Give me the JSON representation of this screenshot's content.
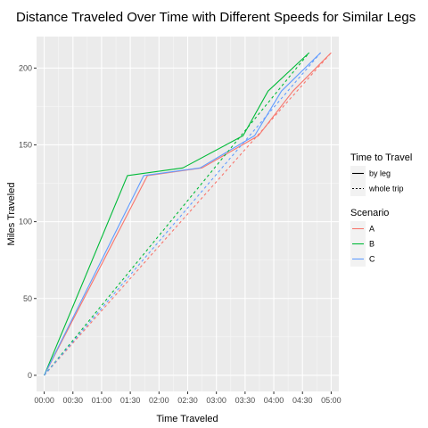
{
  "chart_data": {
    "type": "line",
    "title": "Distance Traveled Over Time with Different Speeds for Similar Legs",
    "xlabel": "Time Traveled",
    "ylabel": "Miles Traveled",
    "x_unit": "minutes",
    "xlim": [
      -8,
      308
    ],
    "ylim": [
      -10.5,
      220.5
    ],
    "x_ticks": [
      {
        "value": 0,
        "label": "00:00"
      },
      {
        "value": 30,
        "label": "00:30"
      },
      {
        "value": 60,
        "label": "01:00"
      },
      {
        "value": 90,
        "label": "01:30"
      },
      {
        "value": 120,
        "label": "02:00"
      },
      {
        "value": 150,
        "label": "02:30"
      },
      {
        "value": 180,
        "label": "03:00"
      },
      {
        "value": 210,
        "label": "03:30"
      },
      {
        "value": 240,
        "label": "04:00"
      },
      {
        "value": 270,
        "label": "04:30"
      },
      {
        "value": 300,
        "label": "05:00"
      }
    ],
    "y_ticks": [
      0,
      50,
      100,
      150,
      200
    ],
    "grid": true,
    "legend_placement": "right",
    "legend": {
      "linetype_title": "Time to Travel",
      "linetype_entries": [
        {
          "label": "by leg",
          "dash": "solid"
        },
        {
          "label": "whole trip",
          "dash": "dashed"
        }
      ],
      "color_title": "Scenario"
    },
    "series": [
      {
        "name": "A",
        "color": "#F8766D",
        "leg": "by leg",
        "x": [
          0,
          108,
          165,
          224,
          260,
          300
        ],
        "y": [
          0,
          130,
          135,
          156,
          185,
          210
        ]
      },
      {
        "name": "B",
        "color": "#00BA38",
        "leg": "by leg",
        "x": [
          0,
          87,
          145,
          208,
          234,
          277
        ],
        "y": [
          0,
          130,
          135,
          156,
          185,
          210
        ]
      },
      {
        "name": "C",
        "color": "#619CFF",
        "leg": "by leg",
        "x": [
          0,
          104,
          163,
          220,
          248,
          289
        ],
        "y": [
          0,
          130,
          135,
          156,
          185,
          210
        ]
      },
      {
        "name": "A",
        "color": "#F8766D",
        "leg": "whole trip",
        "x": [
          0,
          300
        ],
        "y": [
          0,
          210
        ]
      },
      {
        "name": "B",
        "color": "#00BA38",
        "leg": "whole trip",
        "x": [
          0,
          277
        ],
        "y": [
          0,
          210
        ]
      },
      {
        "name": "C",
        "color": "#619CFF",
        "leg": "whole trip",
        "x": [
          0,
          289
        ],
        "y": [
          0,
          210
        ]
      }
    ],
    "scenarios": [
      {
        "label": "A",
        "color": "#F8766D"
      },
      {
        "label": "B",
        "color": "#00BA38"
      },
      {
        "label": "C",
        "color": "#619CFF"
      }
    ]
  }
}
